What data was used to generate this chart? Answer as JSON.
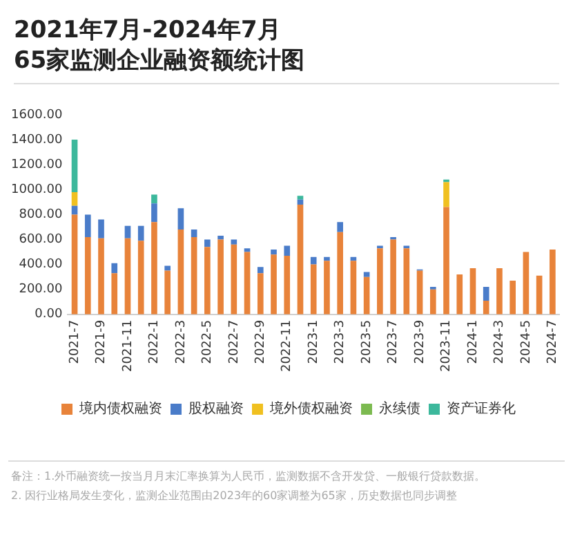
{
  "chart_data": {
    "type": "bar",
    "title": "2021年7月-2024年7月",
    "subtitle": "65家监测企业融资额统计图",
    "categories": [
      "2021-7",
      null,
      "2021-9",
      null,
      "2021-11",
      null,
      "2022-1",
      null,
      "2022-3",
      null,
      "2022-5",
      null,
      "2022-7",
      null,
      "2022-9",
      null,
      "2022-11",
      null,
      "2023-1",
      null,
      "2023-3",
      null,
      "2023-5",
      null,
      "2023-7",
      null,
      "2023-9",
      null,
      "2023-11",
      null,
      "2024-1",
      null,
      "2024-3",
      null,
      "2024-5",
      null,
      "2024-7"
    ],
    "series": [
      {
        "name": "境内债权融资",
        "color": "#e8833a",
        "values": [
          800,
          620,
          610,
          330,
          610,
          590,
          740,
          350,
          680,
          620,
          540,
          600,
          560,
          500,
          330,
          480,
          470,
          880,
          400,
          430,
          660,
          430,
          300,
          530,
          600,
          530,
          350,
          200,
          860,
          320,
          370,
          110,
          370,
          270,
          500,
          310,
          520
        ]
      },
      {
        "name": "股权融资",
        "color": "#4a7cc9",
        "values": [
          70,
          180,
          150,
          80,
          100,
          120,
          150,
          40,
          170,
          60,
          60,
          30,
          40,
          30,
          50,
          40,
          80,
          40,
          60,
          30,
          80,
          30,
          40,
          20,
          20,
          20,
          10,
          20,
          0,
          0,
          0,
          110,
          0,
          0,
          0,
          0,
          0
        ]
      },
      {
        "name": "境外债权融资",
        "color": "#f0c020",
        "values": [
          110,
          0,
          0,
          0,
          0,
          0,
          0,
          0,
          0,
          0,
          0,
          0,
          0,
          0,
          0,
          0,
          0,
          0,
          0,
          0,
          0,
          0,
          0,
          0,
          0,
          0,
          0,
          0,
          200,
          0,
          0,
          0,
          0,
          0,
          0,
          0,
          0
        ]
      },
      {
        "name": "永续债",
        "color": "#7cba50",
        "values": [
          0,
          0,
          0,
          0,
          0,
          0,
          0,
          0,
          0,
          0,
          0,
          0,
          0,
          0,
          0,
          0,
          0,
          0,
          0,
          0,
          0,
          0,
          0,
          0,
          0,
          0,
          0,
          0,
          0,
          0,
          0,
          0,
          0,
          0,
          0,
          0,
          0
        ]
      },
      {
        "name": "资产证券化",
        "color": "#3cb89c",
        "values": [
          420,
          0,
          0,
          0,
          0,
          0,
          70,
          0,
          0,
          0,
          0,
          0,
          0,
          0,
          0,
          0,
          0,
          30,
          0,
          0,
          0,
          0,
          0,
          0,
          0,
          0,
          0,
          0,
          20,
          0,
          0,
          0,
          0,
          0,
          0,
          0,
          0
        ]
      }
    ],
    "stacked": true,
    "ylim": [
      0,
      1600
    ],
    "yticks": [
      {
        "value": 0,
        "label": "0.00"
      },
      {
        "value": 200,
        "label": "200.00"
      },
      {
        "value": 400,
        "label": "400.00"
      },
      {
        "value": 600,
        "label": "600.00"
      },
      {
        "value": 800,
        "label": "800.00"
      },
      {
        "value": 1000,
        "label": "1000.00"
      },
      {
        "value": 1200,
        "label": "1200.00"
      },
      {
        "value": 1400,
        "label": "1400.00"
      },
      {
        "value": 1600,
        "label": "1600.00"
      }
    ],
    "grid": false,
    "legend": "bottom",
    "annotations": [
      "备注：1.外币融资统一按当月月末汇率换算为人民币，监测数据不含开发贷、一般银行贷款数据。",
      "2. 因行业格局发生变化，监测企业范围由2023年的60家调整为65家，历史数据也同步调整"
    ]
  }
}
